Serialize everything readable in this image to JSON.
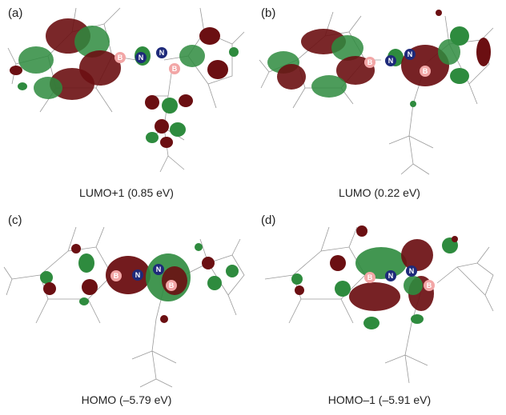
{
  "panels": [
    {
      "letter": "(a)",
      "caption": "LUMO+1 (0.85 eV)"
    },
    {
      "letter": "(b)",
      "caption": "LUMO (0.22 eV)"
    },
    {
      "letter": "(c)",
      "caption": "HOMO (–5.79 eV)"
    },
    {
      "letter": "(d)",
      "caption": "HOMO–1 (–5.91 eV)"
    }
  ],
  "atoms": {
    "boron": "B",
    "nitrogen": "N"
  },
  "colors": {
    "lobe_positive": "#2e8b3e",
    "lobe_negative": "#6b0f12",
    "boron_atom": "#f2a6a6",
    "nitrogen_atom": "#1e2a7a",
    "bond": "#9a9a9a"
  }
}
